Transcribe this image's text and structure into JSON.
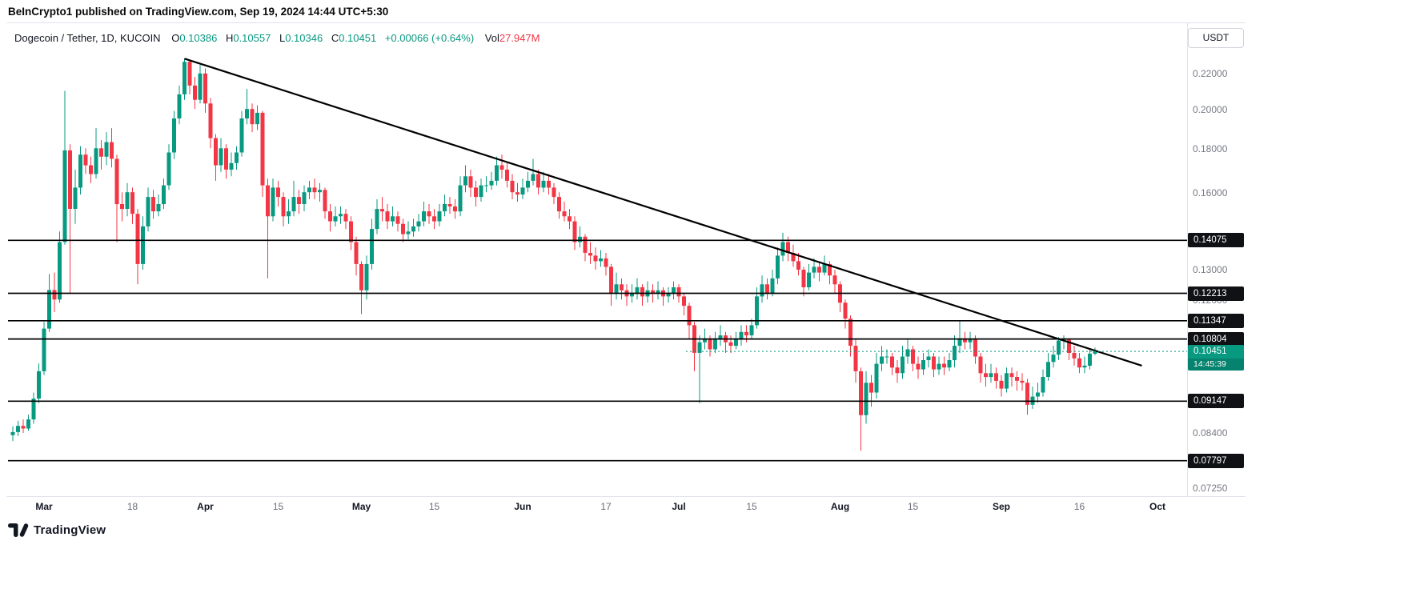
{
  "headline": "BeInCrypto1 published on TradingView.com, Sep 19, 2024 14:44 UTC+5:30",
  "legend": {
    "symbol": "Dogecoin / Tether, 1D, KUCOIN",
    "o_label": "O",
    "o": "0.10386",
    "h_label": "H",
    "h": "0.10557",
    "l_label": "L",
    "l": "0.10346",
    "c_label": "C",
    "c": "0.10451",
    "change": "+0.00066 (+0.64%)",
    "vol_label": "Vol",
    "vol": "27.947M"
  },
  "price_scale": {
    "currency": "USDT",
    "gray_labels": [
      "0.22000",
      "0.20000",
      "0.18000",
      "0.16000",
      "0.13000",
      "0.12000",
      "0.08400",
      "0.07250"
    ],
    "level_badges": [
      "0.14075",
      "0.12213",
      "0.11347",
      "0.10804",
      "0.09147",
      "0.07797"
    ],
    "current": {
      "price": "0.10451",
      "countdown": "14:45:39"
    }
  },
  "logo": {
    "brand": "TradingView"
  },
  "colors": {
    "up": "#089981",
    "down": "#f23645",
    "level_line": "#000000",
    "trend_line": "#000000",
    "axis_text": "#787b86",
    "badge_bg": "#101114",
    "current_badge_bg": "#089981",
    "volume_value": "#f23645"
  },
  "chart_data": {
    "type": "candlestick",
    "title": "Dogecoin / Tether, 1D, KUCOIN",
    "symbol": "DOGE/USDT",
    "interval": "1D",
    "exchange": "KUCOIN",
    "ylabel": "Price (USDT)",
    "scale": "log",
    "ylim": [
      0.0712,
      0.2357
    ],
    "start_date": "2024-02-24",
    "end_date": "2024-09-19",
    "current_price": 0.10451,
    "horizontal_levels": [
      0.14075,
      0.12213,
      0.11347,
      0.10804,
      0.09147,
      0.07797
    ],
    "trendline": {
      "from": {
        "index": 33,
        "price": 0.229
      },
      "to": {
        "index": 217,
        "price": 0.1006
      }
    },
    "x_ticks": [
      {
        "label": "Mar",
        "day": 6,
        "major": true
      },
      {
        "label": "18",
        "day": 23,
        "major": false
      },
      {
        "label": "Apr",
        "day": 37,
        "major": true
      },
      {
        "label": "15",
        "day": 51,
        "major": false
      },
      {
        "label": "May",
        "day": 67,
        "major": true
      },
      {
        "label": "15",
        "day": 81,
        "major": false
      },
      {
        "label": "Jun",
        "day": 98,
        "major": true
      },
      {
        "label": "17",
        "day": 114,
        "major": false
      },
      {
        "label": "Jul",
        "day": 128,
        "major": true
      },
      {
        "label": "15",
        "day": 142,
        "major": false
      },
      {
        "label": "Aug",
        "day": 159,
        "major": true
      },
      {
        "label": "15",
        "day": 173,
        "major": false
      },
      {
        "label": "Sep",
        "day": 190,
        "major": true
      },
      {
        "label": "16",
        "day": 205,
        "major": false
      },
      {
        "label": "Oct",
        "day": 220,
        "major": true
      }
    ],
    "candles": [
      [
        0.0835,
        0.0855,
        0.0822,
        0.0842
      ],
      [
        0.0842,
        0.0868,
        0.0833,
        0.0856
      ],
      [
        0.0856,
        0.0871,
        0.084,
        0.085
      ],
      [
        0.085,
        0.0882,
        0.0845,
        0.0871
      ],
      [
        0.0871,
        0.0936,
        0.0861,
        0.0921
      ],
      [
        0.0921,
        0.1012,
        0.091,
        0.0991
      ],
      [
        0.0991,
        0.1131,
        0.0981,
        0.1111
      ],
      [
        0.1111,
        0.1286,
        0.1101,
        0.1232
      ],
      [
        0.1232,
        0.1291,
        0.1161,
        0.1201
      ],
      [
        0.1201,
        0.1441,
        0.1191,
        0.1401
      ],
      [
        0.1401,
        0.2101,
        0.1391,
        0.1791
      ],
      [
        0.1791,
        0.1821,
        0.1221,
        0.1531
      ],
      [
        0.1531,
        0.1701,
        0.1471,
        0.1621
      ],
      [
        0.1621,
        0.1811,
        0.1591,
        0.1771
      ],
      [
        0.1771,
        0.1801,
        0.1681,
        0.1721
      ],
      [
        0.1721,
        0.1761,
        0.1641,
        0.1681
      ],
      [
        0.1681,
        0.1901,
        0.1661,
        0.1801
      ],
      [
        0.1801,
        0.1841,
        0.1701,
        0.1761
      ],
      [
        0.1761,
        0.1881,
        0.1721,
        0.1831
      ],
      [
        0.1831,
        0.1901,
        0.1711,
        0.1751
      ],
      [
        0.1751,
        0.1771,
        0.1401,
        0.1551
      ],
      [
        0.1551,
        0.1601,
        0.1481,
        0.1531
      ],
      [
        0.1531,
        0.1641,
        0.1501,
        0.1601
      ],
      [
        0.1601,
        0.1621,
        0.1471,
        0.1511
      ],
      [
        0.1511,
        0.1531,
        0.1251,
        0.1321
      ],
      [
        0.1321,
        0.1501,
        0.1301,
        0.1461
      ],
      [
        0.1461,
        0.1621,
        0.1441,
        0.1581
      ],
      [
        0.1581,
        0.1611,
        0.1491,
        0.1521
      ],
      [
        0.1521,
        0.1591,
        0.1501,
        0.1551
      ],
      [
        0.1551,
        0.1661,
        0.1531,
        0.1631
      ],
      [
        0.1631,
        0.1821,
        0.1611,
        0.1781
      ],
      [
        0.1781,
        0.1991,
        0.1751,
        0.1951
      ],
      [
        0.1951,
        0.2131,
        0.1921,
        0.2081
      ],
      [
        0.2081,
        0.2291,
        0.2051,
        0.2271
      ],
      [
        0.2271,
        0.2281,
        0.2081,
        0.2131
      ],
      [
        0.2131,
        0.2181,
        0.2001,
        0.2051
      ],
      [
        0.2051,
        0.2251,
        0.2031,
        0.2201
      ],
      [
        0.2201,
        0.2231,
        0.1981,
        0.2031
      ],
      [
        0.2031,
        0.2061,
        0.1801,
        0.1851
      ],
      [
        0.1851,
        0.1871,
        0.1651,
        0.1721
      ],
      [
        0.1721,
        0.1851,
        0.1691,
        0.1801
      ],
      [
        0.1801,
        0.1821,
        0.1661,
        0.1701
      ],
      [
        0.1701,
        0.1781,
        0.1671,
        0.1731
      ],
      [
        0.1731,
        0.1811,
        0.1701,
        0.1781
      ],
      [
        0.1781,
        0.1991,
        0.1761,
        0.1951
      ],
      [
        0.1951,
        0.2111,
        0.1921,
        0.2001
      ],
      [
        0.2001,
        0.2031,
        0.1881,
        0.1921
      ],
      [
        0.1921,
        0.2021,
        0.1891,
        0.1981
      ],
      [
        0.1981,
        0.1991,
        0.1581,
        0.1631
      ],
      [
        0.1631,
        0.1661,
        0.1271,
        0.1501
      ],
      [
        0.1501,
        0.1661,
        0.1481,
        0.1621
      ],
      [
        0.1621,
        0.1651,
        0.1541,
        0.1581
      ],
      [
        0.1581,
        0.1601,
        0.1461,
        0.1501
      ],
      [
        0.1501,
        0.1571,
        0.1471,
        0.1521
      ],
      [
        0.1521,
        0.1651,
        0.1501,
        0.1581
      ],
      [
        0.1581,
        0.1611,
        0.1511,
        0.1551
      ],
      [
        0.1551,
        0.1631,
        0.1521,
        0.1601
      ],
      [
        0.1601,
        0.1651,
        0.1571,
        0.1621
      ],
      [
        0.1621,
        0.1661,
        0.1571,
        0.1601
      ],
      [
        0.1601,
        0.1641,
        0.1561,
        0.1611
      ],
      [
        0.1611,
        0.1621,
        0.1491,
        0.1521
      ],
      [
        0.1521,
        0.1551,
        0.1441,
        0.1481
      ],
      [
        0.1481,
        0.1541,
        0.1461,
        0.1501
      ],
      [
        0.1501,
        0.1541,
        0.1471,
        0.1511
      ],
      [
        0.1511,
        0.1531,
        0.1451,
        0.1481
      ],
      [
        0.1481,
        0.1501,
        0.1371,
        0.1401
      ],
      [
        0.1401,
        0.1421,
        0.1281,
        0.1321
      ],
      [
        0.1321,
        0.1331,
        0.1155,
        0.1231
      ],
      [
        0.1231,
        0.1351,
        0.1201,
        0.1321
      ],
      [
        0.1321,
        0.1491,
        0.1301,
        0.1451
      ],
      [
        0.1451,
        0.1571,
        0.1431,
        0.1531
      ],
      [
        0.1531,
        0.1581,
        0.1481,
        0.1521
      ],
      [
        0.1521,
        0.1551,
        0.1451,
        0.1481
      ],
      [
        0.1481,
        0.1541,
        0.1461,
        0.1501
      ],
      [
        0.1501,
        0.1521,
        0.1441,
        0.1471
      ],
      [
        0.1471,
        0.1491,
        0.1401,
        0.1431
      ],
      [
        0.1431,
        0.1481,
        0.1411,
        0.1441
      ],
      [
        0.1441,
        0.1491,
        0.1421,
        0.1461
      ],
      [
        0.1461,
        0.1511,
        0.1441,
        0.1481
      ],
      [
        0.1481,
        0.1561,
        0.1461,
        0.1521
      ],
      [
        0.1521,
        0.1551,
        0.1471,
        0.1501
      ],
      [
        0.1501,
        0.1531,
        0.1451,
        0.1481
      ],
      [
        0.1481,
        0.1551,
        0.1461,
        0.1521
      ],
      [
        0.1521,
        0.1591,
        0.1501,
        0.1551
      ],
      [
        0.1551,
        0.1581,
        0.1511,
        0.1541
      ],
      [
        0.1541,
        0.1571,
        0.1491,
        0.1521
      ],
      [
        0.1521,
        0.1671,
        0.1501,
        0.1631
      ],
      [
        0.1631,
        0.1721,
        0.1601,
        0.1671
      ],
      [
        0.1671,
        0.1701,
        0.1581,
        0.1621
      ],
      [
        0.1621,
        0.1651,
        0.1541,
        0.1581
      ],
      [
        0.1581,
        0.1661,
        0.1561,
        0.1631
      ],
      [
        0.1631,
        0.1671,
        0.1601,
        0.1631
      ],
      [
        0.1631,
        0.1691,
        0.1611,
        0.1651
      ],
      [
        0.1651,
        0.1761,
        0.1631,
        0.1721
      ],
      [
        0.1721,
        0.1771,
        0.1661,
        0.1701
      ],
      [
        0.1701,
        0.1731,
        0.1621,
        0.1651
      ],
      [
        0.1651,
        0.1681,
        0.1571,
        0.1601
      ],
      [
        0.1601,
        0.1641,
        0.1561,
        0.1591
      ],
      [
        0.1591,
        0.1661,
        0.1571,
        0.1621
      ],
      [
        0.1621,
        0.1691,
        0.1601,
        0.1651
      ],
      [
        0.1651,
        0.1751,
        0.1631,
        0.1681
      ],
      [
        0.1681,
        0.1701,
        0.1591,
        0.1621
      ],
      [
        0.1621,
        0.1691,
        0.1601,
        0.1651
      ],
      [
        0.1651,
        0.1681,
        0.1591,
        0.1621
      ],
      [
        0.1621,
        0.1641,
        0.1551,
        0.1581
      ],
      [
        0.1581,
        0.1601,
        0.1491,
        0.1521
      ],
      [
        0.1521,
        0.1561,
        0.1481,
        0.1501
      ],
      [
        0.1501,
        0.1531,
        0.1451,
        0.1481
      ],
      [
        0.1481,
        0.1501,
        0.1371,
        0.1401
      ],
      [
        0.1401,
        0.1461,
        0.1381,
        0.1421
      ],
      [
        0.1421,
        0.1431,
        0.1331,
        0.1361
      ],
      [
        0.1361,
        0.1401,
        0.1321,
        0.1351
      ],
      [
        0.1351,
        0.1381,
        0.1301,
        0.1331
      ],
      [
        0.1331,
        0.1371,
        0.1311,
        0.1341
      ],
      [
        0.1341,
        0.1361,
        0.1281,
        0.1311
      ],
      [
        0.1311,
        0.1321,
        0.1181,
        0.1221
      ],
      [
        0.1221,
        0.1291,
        0.1201,
        0.1251
      ],
      [
        0.1251,
        0.1271,
        0.1201,
        0.1231
      ],
      [
        0.1231,
        0.1251,
        0.1181,
        0.1211
      ],
      [
        0.1211,
        0.1251,
        0.1191,
        0.1221
      ],
      [
        0.1221,
        0.1271,
        0.1201,
        0.1241
      ],
      [
        0.1241,
        0.1251,
        0.1181,
        0.1211
      ],
      [
        0.1211,
        0.1261,
        0.1191,
        0.1231
      ],
      [
        0.1231,
        0.1251,
        0.1191,
        0.1221
      ],
      [
        0.1221,
        0.1261,
        0.1201,
        0.1231
      ],
      [
        0.1231,
        0.1241,
        0.1181,
        0.1211
      ],
      [
        0.1211,
        0.1241,
        0.1191,
        0.1221
      ],
      [
        0.1221,
        0.1261,
        0.1201,
        0.1241
      ],
      [
        0.1241,
        0.1251,
        0.1191,
        0.1211
      ],
      [
        0.1211,
        0.1221,
        0.1151,
        0.1181
      ],
      [
        0.1181,
        0.1191,
        0.1081,
        0.1121
      ],
      [
        0.1121,
        0.1131,
        0.0991,
        0.1041
      ],
      [
        0.1041,
        0.1091,
        0.091,
        0.1071
      ],
      [
        0.1071,
        0.1111,
        0.1051,
        0.1081
      ],
      [
        0.1081,
        0.1091,
        0.1031,
        0.1051
      ],
      [
        0.1051,
        0.1101,
        0.1041,
        0.1081
      ],
      [
        0.1081,
        0.1121,
        0.1061,
        0.1091
      ],
      [
        0.1091,
        0.1101,
        0.1041,
        0.1071
      ],
      [
        0.1071,
        0.1091,
        0.1041,
        0.1061
      ],
      [
        0.1061,
        0.1101,
        0.1051,
        0.1081
      ],
      [
        0.1081,
        0.1121,
        0.1061,
        0.1101
      ],
      [
        0.1101,
        0.1121,
        0.1071,
        0.1091
      ],
      [
        0.1091,
        0.1141,
        0.1081,
        0.1121
      ],
      [
        0.1121,
        0.1241,
        0.1111,
        0.1211
      ],
      [
        0.1211,
        0.1281,
        0.1191,
        0.1251
      ],
      [
        0.1251,
        0.1271,
        0.1201,
        0.1221
      ],
      [
        0.1221,
        0.1301,
        0.1211,
        0.1271
      ],
      [
        0.1271,
        0.1381,
        0.1251,
        0.1351
      ],
      [
        0.1351,
        0.1436,
        0.1331,
        0.1401
      ],
      [
        0.1401,
        0.1421,
        0.1331,
        0.1361
      ],
      [
        0.1361,
        0.1391,
        0.1311,
        0.1331
      ],
      [
        0.1331,
        0.1361,
        0.1281,
        0.1301
      ],
      [
        0.1301,
        0.1311,
        0.1211,
        0.1241
      ],
      [
        0.1241,
        0.1321,
        0.1231,
        0.1291
      ],
      [
        0.1291,
        0.1341,
        0.1271,
        0.1311
      ],
      [
        0.1311,
        0.1331,
        0.1261,
        0.1291
      ],
      [
        0.1291,
        0.1351,
        0.1281,
        0.1321
      ],
      [
        0.1321,
        0.1331,
        0.1251,
        0.1281
      ],
      [
        0.1281,
        0.1301,
        0.1221,
        0.1251
      ],
      [
        0.1251,
        0.1261,
        0.1161,
        0.1191
      ],
      [
        0.1191,
        0.1201,
        0.1111,
        0.1141
      ],
      [
        0.1141,
        0.1151,
        0.1031,
        0.1061
      ],
      [
        0.1061,
        0.1081,
        0.0961,
        0.0991
      ],
      [
        0.0991,
        0.1001,
        0.0801,
        0.0881
      ],
      [
        0.0881,
        0.0991,
        0.0861,
        0.0961
      ],
      [
        0.0961,
        0.0981,
        0.0901,
        0.0936
      ],
      [
        0.0936,
        0.1041,
        0.0921,
        0.1011
      ],
      [
        0.1011,
        0.1061,
        0.0991,
        0.1031
      ],
      [
        0.1031,
        0.1051,
        0.1011,
        0.1031
      ],
      [
        0.1031,
        0.1041,
        0.0981,
        0.1001
      ],
      [
        0.1001,
        0.1021,
        0.0961,
        0.0986
      ],
      [
        0.0986,
        0.1061,
        0.0971,
        0.1031
      ],
      [
        0.1031,
        0.1081,
        0.1011,
        0.1051
      ],
      [
        0.1051,
        0.1061,
        0.0991,
        0.1011
      ],
      [
        0.1011,
        0.1031,
        0.0971,
        0.0996
      ],
      [
        0.0996,
        0.1041,
        0.0981,
        0.1021
      ],
      [
        0.1021,
        0.1051,
        0.1001,
        0.1031
      ],
      [
        0.1031,
        0.1041,
        0.0976,
        0.0996
      ],
      [
        0.0996,
        0.1031,
        0.0981,
        0.1011
      ],
      [
        0.1011,
        0.1031,
        0.0981,
        0.1001
      ],
      [
        0.1001,
        0.1041,
        0.0991,
        0.1021
      ],
      [
        0.1021,
        0.1091,
        0.1001,
        0.1061
      ],
      [
        0.1061,
        0.1136,
        0.1041,
        0.1081
      ],
      [
        0.1081,
        0.1101,
        0.1051,
        0.1071
      ],
      [
        0.1071,
        0.1101,
        0.1051,
        0.1081
      ],
      [
        0.1081,
        0.1091,
        0.1011,
        0.1031
      ],
      [
        0.1031,
        0.1041,
        0.0961,
        0.0986
      ],
      [
        0.0986,
        0.1011,
        0.0951,
        0.0976
      ],
      [
        0.0976,
        0.1011,
        0.0961,
        0.0986
      ],
      [
        0.0986,
        0.1001,
        0.0946,
        0.0966
      ],
      [
        0.0966,
        0.0981,
        0.0926,
        0.0946
      ],
      [
        0.0946,
        0.1001,
        0.0936,
        0.0986
      ],
      [
        0.0986,
        0.1001,
        0.0951,
        0.0976
      ],
      [
        0.0976,
        0.0991,
        0.0941,
        0.0966
      ],
      [
        0.0966,
        0.0986,
        0.0941,
        0.0961
      ],
      [
        0.0961,
        0.0971,
        0.0882,
        0.0906
      ],
      [
        0.0906,
        0.0951,
        0.0896,
        0.0926
      ],
      [
        0.0926,
        0.0961,
        0.0911,
        0.0936
      ],
      [
        0.0936,
        0.0996,
        0.0926,
        0.0976
      ],
      [
        0.0976,
        0.1041,
        0.0966,
        0.1016
      ],
      [
        0.1016,
        0.1061,
        0.1001,
        0.1036
      ],
      [
        0.1036,
        0.1086,
        0.1021,
        0.1076
      ],
      [
        0.1076,
        0.1091,
        0.1051,
        0.1078
      ],
      [
        0.1078,
        0.1081,
        0.1021,
        0.1041
      ],
      [
        0.1041,
        0.1061,
        0.1006,
        0.1026
      ],
      [
        0.1026,
        0.1041,
        0.0986,
        0.1001
      ],
      [
        0.1001,
        0.1031,
        0.0986,
        0.1006
      ],
      [
        0.1006,
        0.1051,
        0.0996,
        0.1039
      ],
      [
        0.10386,
        0.10557,
        0.10346,
        0.10451
      ]
    ]
  }
}
